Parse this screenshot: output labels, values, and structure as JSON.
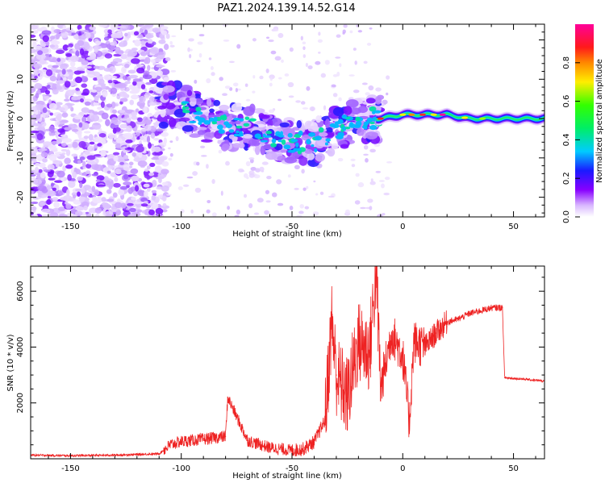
{
  "title": "PAZ1.2024.139.14.52.G14",
  "colors": {
    "snr_line": "#ee2222",
    "spectrogram_low": "#e8d8ff",
    "spectrogram_mid": "#7a10ff",
    "spectrogram_band": "#20e060"
  },
  "chart_data": [
    {
      "type": "heatmap",
      "name": "spectrogram",
      "xlabel": "Height of straight line (km)",
      "ylabel": "Frequency (Hz)",
      "xlim": [
        -168,
        64
      ],
      "ylim": [
        -25,
        24
      ],
      "x_ticks": [
        -150,
        -100,
        -50,
        0,
        50
      ],
      "y_ticks": [
        -20,
        -10,
        0,
        10,
        20
      ],
      "x_tick_labels": [
        "-150",
        "-100",
        "-50",
        "0",
        "50"
      ],
      "y_tick_labels": [
        "-20",
        "-10",
        "0",
        "10",
        "20"
      ],
      "colorbar": {
        "label": "Normalized spectral amplitude",
        "range": [
          0,
          1
        ],
        "ticks": [
          0.0,
          0.2,
          0.4,
          0.6,
          0.8
        ],
        "tick_labels": [
          "0.0",
          "0.2",
          "0.4",
          "0.6",
          "0.8"
        ],
        "colormap": "rainbow (white-violet-blue-cyan-green-yellow-red-magenta)"
      },
      "dominant_frequency_trace": {
        "x": [
          -110,
          -100,
          -90,
          -80,
          -70,
          -60,
          -50,
          -40,
          -30,
          -20,
          -10,
          0,
          10,
          20,
          30,
          40,
          50,
          64
        ],
        "y": [
          4,
          3,
          0,
          -2,
          -2,
          -4,
          -6,
          -6,
          -3,
          0,
          0,
          1,
          1,
          1,
          0,
          0,
          0,
          0
        ]
      },
      "grid": false
    },
    {
      "type": "line",
      "name": "snr",
      "xlabel": "Height of straight line (km)",
      "ylabel": "SNR (10 * v/v)",
      "xlim": [
        -168,
        64
      ],
      "ylim": [
        0,
        6900
      ],
      "x_ticks": [
        -150,
        -100,
        -50,
        0,
        50
      ],
      "y_ticks": [
        2000,
        4000,
        6000
      ],
      "x_tick_labels": [
        "-150",
        "-100",
        "-50",
        "0",
        "50"
      ],
      "y_tick_labels": [
        "2000",
        "4000",
        "6000"
      ],
      "series": [
        {
          "x": [
            -168,
            -150,
            -130,
            -110,
            -105,
            -100,
            -90,
            -80,
            -79,
            -70,
            -60,
            -50,
            -45,
            -40,
            -35,
            -32,
            -30,
            -25,
            -20,
            -15,
            -12,
            -10,
            -5,
            0,
            3,
            5,
            10,
            15,
            20,
            25,
            30,
            35,
            40,
            45,
            46,
            50,
            55,
            64
          ],
          "y": [
            130,
            110,
            130,
            180,
            500,
            620,
            700,
            800,
            2200,
            650,
            400,
            300,
            350,
            600,
            1400,
            5000,
            3000,
            2200,
            4200,
            3800,
            6800,
            2500,
            4500,
            3700,
            1300,
            4200,
            4000,
            4500,
            4900,
            5000,
            5200,
            5300,
            5400,
            5420,
            2900,
            2880,
            2850,
            2780
          ]
        }
      ],
      "grid": false
    }
  ]
}
